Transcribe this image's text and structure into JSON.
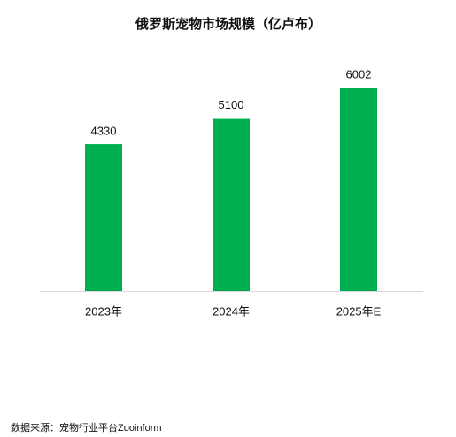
{
  "chart_data": {
    "type": "bar",
    "title": "俄罗斯宠物市场规模（亿卢布）",
    "categories": [
      "2023年",
      "2024年",
      "2025年E"
    ],
    "values": [
      4330,
      5100,
      6002
    ],
    "color": "#00b050",
    "source": "数据来源：宠物行业平台Zooinform"
  }
}
